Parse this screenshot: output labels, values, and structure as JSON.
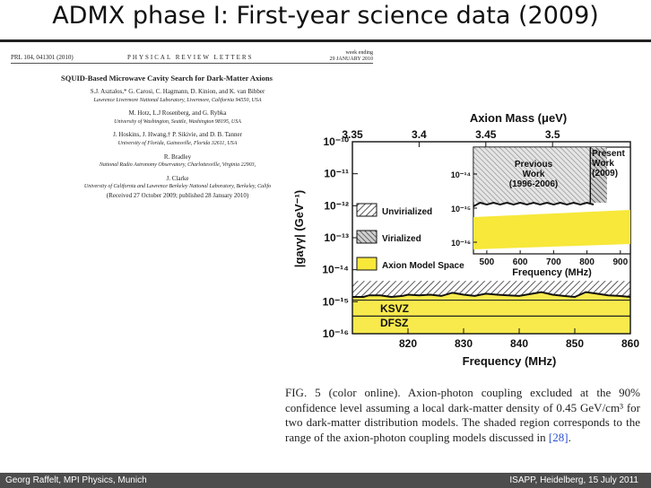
{
  "slide": {
    "title": "ADMX phase I: First-year science data (2009)",
    "footer_left": "Georg Raffelt, MPI Physics, Munich",
    "footer_right": "ISAPP, Heidelberg, 15 July 2011"
  },
  "paper": {
    "citation": "PRL 104, 041301 (2010)",
    "journal": "PHYSICAL REVIEW LETTERS",
    "week_label": "week ending",
    "date": "29 JANUARY 2010",
    "title": "SQUID-Based Microwave Cavity Search for Dark-Matter Axions",
    "author_groups": [
      {
        "names": "S.J. Asztalos,* G. Carosi, C. Hagmann, D. Kinion, and K. van Bibber",
        "affiliation": "Lawrence Livermore National Laboratory, Livermore, California 94550, USA"
      },
      {
        "names": "M. Hotz, L.J Rosenberg, and G. Rybka",
        "affiliation": "University of Washington, Seattle, Washington 98195, USA"
      },
      {
        "names": "J. Hoskins, J. Hwang,† P. Sikivie, and D. B. Tanner",
        "affiliation": "University of Florida, Gainesville, Florida 32611, USA"
      },
      {
        "names": "R. Bradley",
        "affiliation": "National Radio Astronomy Observatory, Charlottesville, Virginia 22903,"
      },
      {
        "names": "J. Clarke",
        "affiliation": "University of California and Lawrence Berkeley National Laboratory, Berkeley, Califo"
      }
    ],
    "received": "(Received 27 October 2009; published 28 January 2010)"
  },
  "figure": {
    "caption_main": "FIG. 5 (color online). Axion-photon coupling excluded at the 90% confidence level assuming a local dark-matter density of 0.45 GeV/cm³ for two dark-matter distribution models. The shaded region corresponds to the range of the axion-photon coupling models discussed in",
    "caption_ref": "[28]",
    "caption_end": "."
  },
  "chart_data": {
    "type": "area",
    "title": "",
    "ylabel": "|gaγγ| (GeV⁻¹)",
    "xlabel": "Frequency (MHz)",
    "top_axis_label": "Axion Mass (μeV)",
    "top_ticks": [
      "3.35",
      "3.4",
      "3.45",
      "3.5"
    ],
    "top_tick_freq": [
      810,
      822,
      834,
      846
    ],
    "xlim": [
      810,
      860
    ],
    "x_ticks": [
      "820",
      "830",
      "840",
      "850",
      "860"
    ],
    "ylim_exp": [
      -16,
      -10
    ],
    "y_ticks": [
      "10⁻¹⁰",
      "10⁻¹¹",
      "10⁻¹²",
      "10⁻¹³",
      "10⁻¹⁴",
      "10⁻¹⁵",
      "10⁻¹⁶"
    ],
    "legend": [
      "Unvirialized",
      "Virialized",
      "Axion Model Space"
    ],
    "model_lines": [
      "KSVZ",
      "DFSZ"
    ],
    "model_band_exp": [
      -16.25,
      -14.65
    ],
    "exclusion_limit": {
      "x": [
        810,
        812,
        813,
        815,
        817,
        819,
        820,
        822,
        824,
        826,
        828,
        830,
        832,
        834,
        836,
        838,
        840,
        842,
        844,
        846,
        848,
        850,
        852,
        854,
        856,
        858,
        860
      ],
      "exp": [
        -14.85,
        -14.85,
        -14.8,
        -14.8,
        -14.85,
        -14.82,
        -14.78,
        -14.8,
        -14.78,
        -14.82,
        -14.72,
        -14.78,
        -14.82,
        -14.75,
        -14.78,
        -14.8,
        -14.82,
        -14.76,
        -14.7,
        -14.78,
        -14.82,
        -14.85,
        -14.7,
        -14.75,
        -14.8,
        -14.82,
        -14.85
      ]
    },
    "inset": {
      "xlabel": "Frequency (MHz)",
      "x_ticks": [
        "500",
        "600",
        "700",
        "800",
        "900"
      ],
      "xlim": [
        460,
        930
      ],
      "y_ticks": [
        "10⁻¹⁴",
        "10⁻¹⁵",
        "10⁻¹⁶"
      ],
      "labels": [
        "Previous Work (1996-2006)",
        "Present Work (2009)"
      ],
      "previous_range": [
        460,
        810
      ],
      "present_range": [
        810,
        860
      ]
    }
  }
}
